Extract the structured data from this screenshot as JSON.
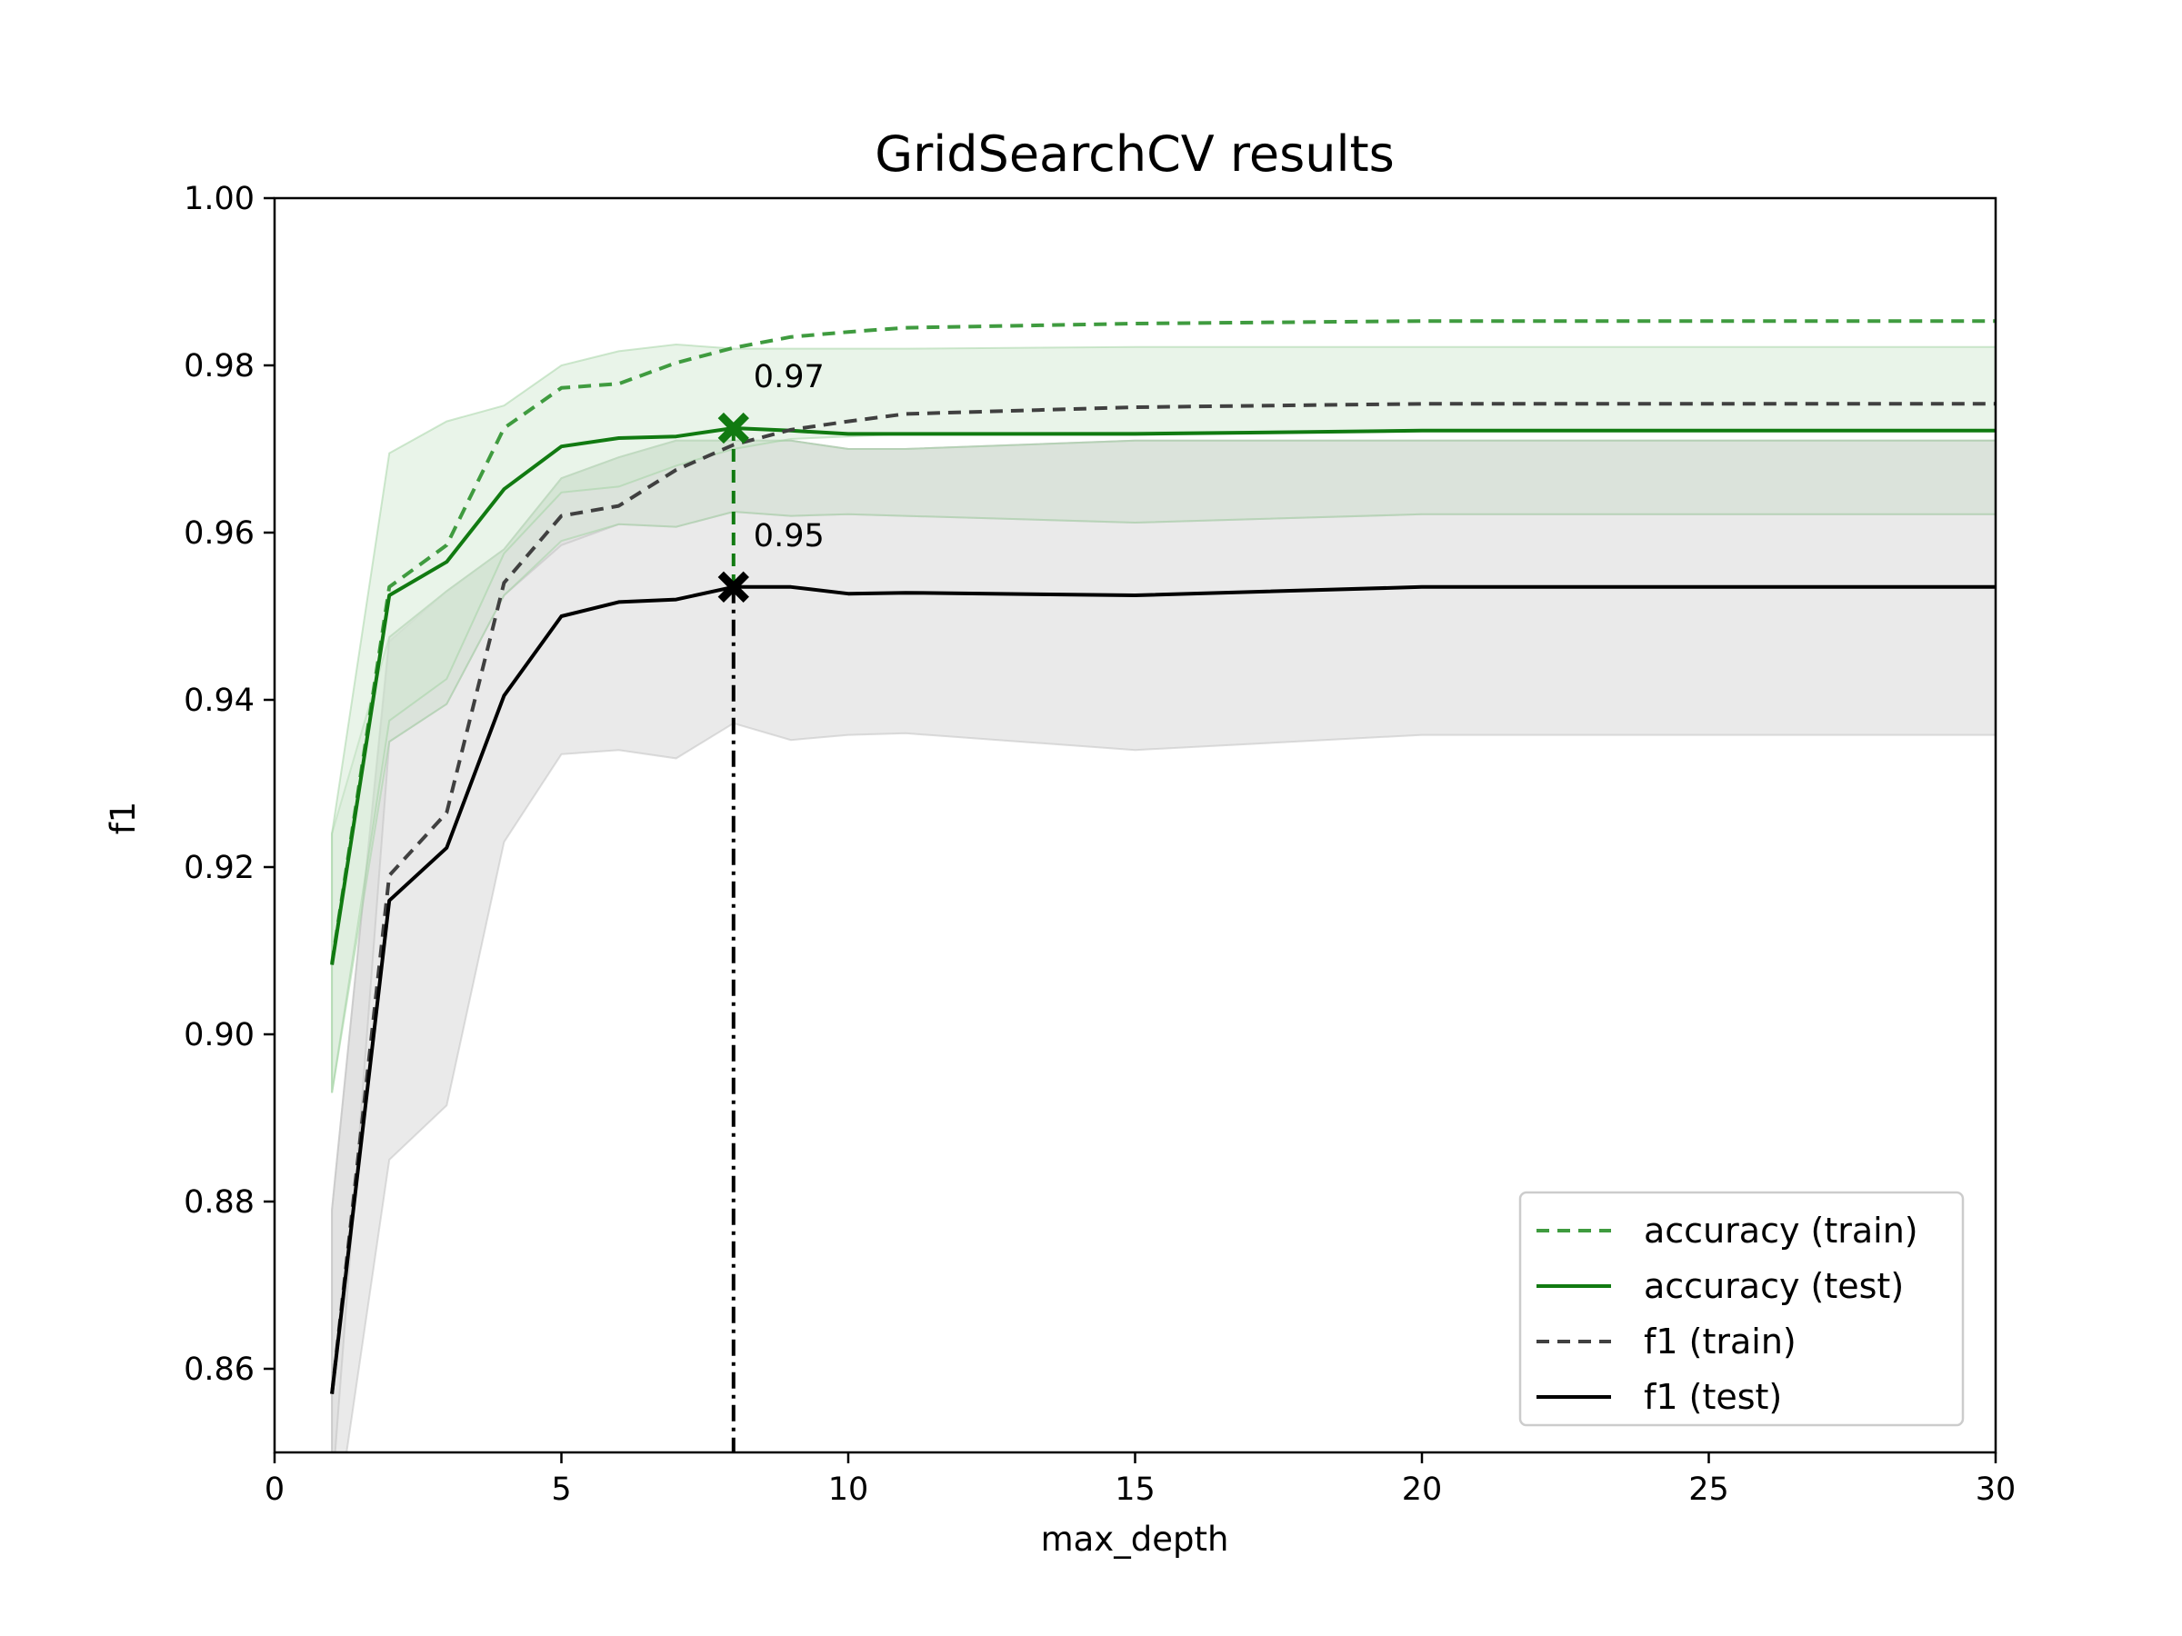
{
  "chart_data": {
    "type": "line",
    "title": "GridSearchCV results",
    "xlabel": "max_depth",
    "ylabel": "f1",
    "xlim": [
      0,
      30
    ],
    "ylim": [
      0.85,
      1.0
    ],
    "xticks": [
      "0",
      "5",
      "10",
      "15",
      "20",
      "25",
      "30"
    ],
    "yticks": [
      "0.86",
      "0.88",
      "0.90",
      "0.92",
      "0.94",
      "0.96",
      "0.98",
      "1.00"
    ],
    "grid": false,
    "legend_position": "lower-right",
    "x": [
      1,
      2,
      3,
      4,
      5,
      6,
      7,
      8,
      9,
      10,
      11,
      15,
      20,
      30
    ],
    "series": [
      {
        "name": "accuracy (train)",
        "color": "#3f9b3f",
        "style": "dashed",
        "values": [
          0.9085,
          0.9535,
          0.9585,
          0.9725,
          0.9773,
          0.9778,
          0.9803,
          0.9821,
          0.9834,
          0.984,
          0.9845,
          0.985,
          0.9853,
          0.9853
        ],
        "band_lower": [
          0.893,
          0.9375,
          0.9425,
          0.9575,
          0.9648,
          0.9655,
          0.968,
          0.97,
          0.9712,
          0.9715,
          0.9718,
          0.972,
          0.9722,
          0.9722
        ],
        "band_upper": [
          0.924,
          0.9695,
          0.9733,
          0.9752,
          0.98,
          0.9817,
          0.9825,
          0.982,
          0.982,
          0.982,
          0.982,
          0.9822,
          0.9822,
          0.9822
        ]
      },
      {
        "name": "accuracy (test)",
        "color": "#117a11",
        "style": "solid",
        "values": [
          0.9083,
          0.9525,
          0.9565,
          0.9652,
          0.9703,
          0.9713,
          0.9715,
          0.9725,
          0.9722,
          0.9718,
          0.9718,
          0.9718,
          0.9722,
          0.9722
        ],
        "band_lower": [
          0.893,
          0.935,
          0.9395,
          0.9525,
          0.959,
          0.961,
          0.9607,
          0.9625,
          0.962,
          0.9622,
          0.962,
          0.9612,
          0.9622,
          0.9622
        ],
        "band_upper": [
          0.924,
          0.9475,
          0.953,
          0.958,
          0.9665,
          0.969,
          0.971,
          0.971,
          0.971,
          0.97,
          0.97,
          0.971,
          0.971,
          0.971
        ]
      },
      {
        "name": "f1 (train)",
        "color": "#404040",
        "style": "dashed",
        "values": [
          0.857,
          0.919,
          0.9265,
          0.954,
          0.962,
          0.9632,
          0.9675,
          0.9705,
          0.9723,
          0.9733,
          0.9742,
          0.975,
          0.9754,
          0.9754
        ],
        "band_lower": [
          0.845,
          0.935,
          0.9395,
          0.9525,
          0.9585,
          0.961,
          0.9607,
          0.9625,
          0.962,
          0.9622,
          0.962,
          0.9612,
          0.9622,
          0.9622
        ],
        "band_upper": [
          0.879,
          0.9475,
          0.953,
          0.958,
          0.9665,
          0.969,
          0.971,
          0.971,
          0.971,
          0.97,
          0.97,
          0.971,
          0.971,
          0.971
        ]
      },
      {
        "name": "f1 (test)",
        "color": "#000000",
        "style": "solid",
        "values": [
          0.857,
          0.916,
          0.9223,
          0.9405,
          0.95,
          0.9517,
          0.952,
          0.9535,
          0.9535,
          0.9527,
          0.9528,
          0.9525,
          0.9535,
          0.9535
        ],
        "band_lower": [
          0.838,
          0.885,
          0.8915,
          0.923,
          0.9335,
          0.934,
          0.933,
          0.9372,
          0.9352,
          0.9358,
          0.936,
          0.934,
          0.9358,
          0.9358
        ],
        "band_upper": [
          0.879,
          0.947,
          0.953,
          0.958,
          0.9665,
          0.969,
          0.971,
          0.971,
          0.971,
          0.97,
          0.97,
          0.971,
          0.971,
          0.971
        ]
      }
    ],
    "annotations": [
      {
        "label": "0.97",
        "x": 8,
        "y": 0.9725,
        "marker": "X",
        "color": "#117a11",
        "line": "dashed"
      },
      {
        "label": "0.95",
        "x": 8,
        "y": 0.9535,
        "marker": "X",
        "color": "#000000",
        "line": "dashdot"
      }
    ]
  }
}
